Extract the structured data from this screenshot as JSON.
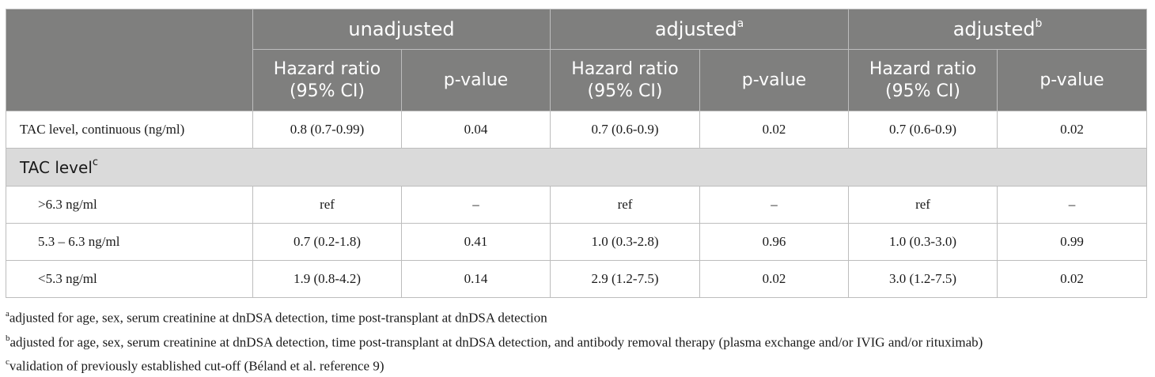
{
  "header": {
    "groups": [
      {
        "label": "unadjusted",
        "sup": ""
      },
      {
        "label": "adjusted",
        "sup": "a"
      },
      {
        "label": "adjusted",
        "sup": "b"
      }
    ],
    "sub_hr_line1": "Hazard ratio",
    "sub_hr_line2": "(95% CI)",
    "sub_p": "p-value"
  },
  "rows": [
    {
      "label": "TAC level, continuous (ng/ml)",
      "values": [
        "0.8 (0.7-0.99)",
        "0.04",
        "0.7 (0.6-0.9)",
        "0.02",
        "0.7 (0.6-0.9)",
        "0.02"
      ]
    }
  ],
  "section": {
    "label": "TAC level",
    "sup": "c"
  },
  "sub_rows": [
    {
      "label": ">6.3 ng/ml",
      "values": [
        "ref",
        "–",
        "ref",
        "–",
        "ref",
        "–"
      ]
    },
    {
      "label": "5.3 – 6.3 ng/ml",
      "values": [
        "0.7 (0.2-1.8)",
        "0.41",
        "1.0 (0.3-2.8)",
        "0.96",
        "1.0 (0.3-3.0)",
        "0.99"
      ]
    },
    {
      "label": "<5.3 ng/ml",
      "values": [
        "1.9 (0.8-4.2)",
        "0.14",
        "2.9 (1.2-7.5)",
        "0.02",
        "3.0 (1.2-7.5)",
        "0.02"
      ]
    }
  ],
  "footnotes": [
    {
      "mark": "a",
      "text": "adjusted for age, sex, serum creatinine at dnDSA detection, time post-transplant at dnDSA detection"
    },
    {
      "mark": "b",
      "text": "adjusted for age, sex, serum creatinine at dnDSA detection, time post-transplant at dnDSA detection, and antibody removal therapy (plasma exchange and/or IVIG and/or rituximab)"
    },
    {
      "mark": "c",
      "text": "validation of previously established cut-off (Béland et al. reference 9)"
    }
  ]
}
